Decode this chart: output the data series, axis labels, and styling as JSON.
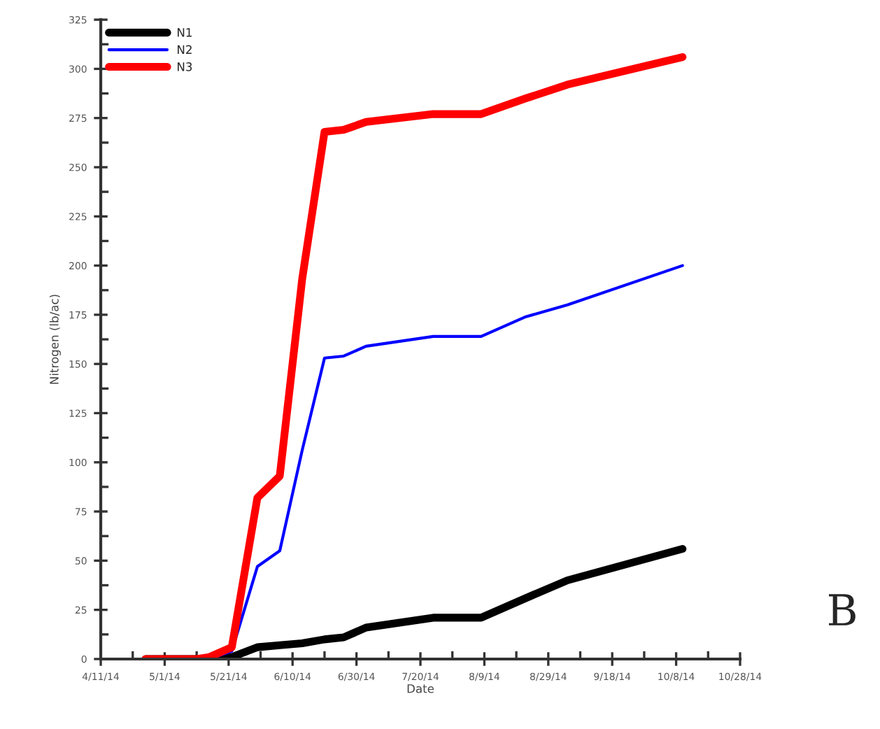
{
  "chart_data": {
    "type": "line",
    "xlabel": "Date",
    "ylabel": "Nitrogen (lb/ac)",
    "annotations": [
      "B"
    ],
    "x": [
      "2014-04-25",
      "2014-05-11",
      "2014-05-15",
      "2014-05-22",
      "2014-05-30",
      "2014-06-06",
      "2014-06-13",
      "2014-06-20",
      "2014-06-26",
      "2014-07-03",
      "2014-07-24",
      "2014-08-08",
      "2014-08-22",
      "2014-09-04",
      "2014-10-10"
    ],
    "series": [
      {
        "name": "N1",
        "color": "#000000",
        "values": [
          0,
          0,
          0,
          1,
          6,
          7,
          8,
          10,
          11,
          16,
          21,
          21,
          31,
          40,
          56
        ]
      },
      {
        "name": "N2",
        "color": "#0000ff",
        "values": [
          null,
          null,
          0,
          4,
          47,
          55,
          106,
          153,
          154,
          159,
          164,
          164,
          174,
          180,
          200
        ]
      },
      {
        "name": "N3",
        "color": "#ff0000",
        "values": [
          0,
          0,
          1,
          6,
          82,
          93,
          193,
          268,
          269,
          273,
          277,
          277,
          285,
          292,
          306
        ]
      }
    ],
    "xlim": [
      "2014-04-11",
      "2014-10-28"
    ],
    "xticks": [
      {
        "value": "2014-04-11",
        "label": "4/11/14"
      },
      {
        "value": "2014-05-01",
        "label": "5/1/14"
      },
      {
        "value": "2014-05-21",
        "label": "5/21/14"
      },
      {
        "value": "2014-06-10",
        "label": "6/10/14"
      },
      {
        "value": "2014-06-30",
        "label": "6/30/14"
      },
      {
        "value": "2014-07-20",
        "label": "7/20/14"
      },
      {
        "value": "2014-08-09",
        "label": "8/9/14"
      },
      {
        "value": "2014-08-29",
        "label": "8/29/14"
      },
      {
        "value": "2014-09-18",
        "label": "9/18/14"
      },
      {
        "value": "2014-10-08",
        "label": "10/8/14"
      },
      {
        "value": "2014-10-28",
        "label": "10/28/14"
      }
    ],
    "ylim": [
      0,
      325
    ],
    "yticks": [
      0,
      25,
      50,
      75,
      100,
      125,
      150,
      175,
      200,
      225,
      250,
      275,
      300,
      325
    ],
    "legend": "top left",
    "grid": false,
    "marker": "none",
    "line_style": "solid"
  }
}
